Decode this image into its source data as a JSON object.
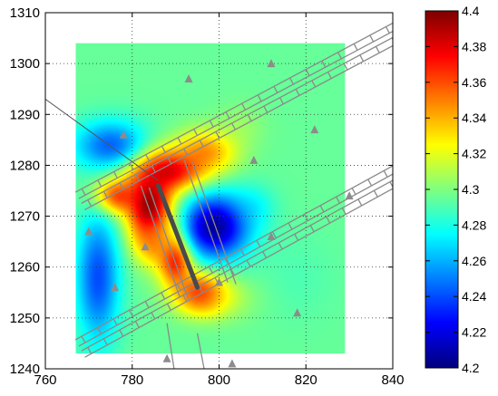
{
  "chart_data": {
    "type": "heatmap",
    "title": "",
    "xlabel": "",
    "ylabel": "",
    "xlim": [
      760,
      840
    ],
    "ylim": [
      1240,
      1310
    ],
    "x_ticks": [
      760,
      780,
      800,
      820,
      840
    ],
    "y_ticks": [
      1240,
      1250,
      1260,
      1270,
      1280,
      1290,
      1300,
      1310
    ],
    "grid": true,
    "grid_style": "dotted",
    "data_extent": {
      "x": [
        767,
        829
      ],
      "y": [
        1243,
        1304
      ]
    },
    "colormap": "jet",
    "colorbar": {
      "position": "right",
      "range": [
        4.2,
        4.4
      ],
      "ticks": [
        "4.2",
        "4.22",
        "4.24",
        "4.26",
        "4.28",
        "4.3",
        "4.32",
        "4.34",
        "4.36",
        "4.38",
        "4.4"
      ]
    },
    "features": [
      {
        "value": 4.4,
        "x": 784,
        "y": 1272,
        "sx": 3.8,
        "sy": 5.5,
        "a": 1.0
      },
      {
        "value": 4.4,
        "x": 788,
        "y": 1279,
        "sx": 6.5,
        "sy": 3.0,
        "a": 0.85
      },
      {
        "value": 4.4,
        "x": 776,
        "y": 1274,
        "sx": 3.5,
        "sy": 2.5,
        "a": 0.7
      },
      {
        "value": 4.4,
        "x": 790,
        "y": 1262,
        "sx": 2.8,
        "sy": 4.0,
        "a": 0.85
      },
      {
        "value": 4.4,
        "x": 796,
        "y": 1255,
        "sx": 4.0,
        "sy": 2.8,
        "a": 0.8
      },
      {
        "value": 4.38,
        "x": 797,
        "y": 1283,
        "sx": 5.0,
        "sy": 3.0,
        "a": 0.55
      },
      {
        "value": 4.36,
        "x": 785,
        "y": 1265,
        "sx": 3.0,
        "sy": 3.0,
        "a": 0.6
      },
      {
        "value": 4.33,
        "x": 800,
        "y": 1254,
        "sx": 6.0,
        "sy": 3.0,
        "a": 0.45
      },
      {
        "value": 4.32,
        "x": 805,
        "y": 1288,
        "sx": 4.0,
        "sy": 3.0,
        "a": 0.35
      },
      {
        "value": 4.2,
        "x": 799,
        "y": 1268,
        "sx": 5.5,
        "sy": 4.5,
        "a": -0.95
      },
      {
        "value": 4.21,
        "x": 775,
        "y": 1284,
        "sx": 6.0,
        "sy": 3.5,
        "a": -0.6
      },
      {
        "value": 4.21,
        "x": 772,
        "y": 1258,
        "sx": 3.5,
        "sy": 9.0,
        "a": -0.65
      },
      {
        "value": 4.25,
        "x": 808,
        "y": 1272,
        "sx": 3.5,
        "sy": 3.0,
        "a": -0.35
      },
      {
        "value": 4.27,
        "x": 818,
        "y": 1258,
        "sx": 6.0,
        "sy": 6.0,
        "a": -0.2
      }
    ],
    "stations": [
      {
        "x": 778,
        "y": 1286
      },
      {
        "x": 793,
        "y": 1297
      },
      {
        "x": 812,
        "y": 1300
      },
      {
        "x": 822,
        "y": 1287
      },
      {
        "x": 808,
        "y": 1281
      },
      {
        "x": 830,
        "y": 1274
      },
      {
        "x": 770,
        "y": 1267
      },
      {
        "x": 812,
        "y": 1266
      },
      {
        "x": 783,
        "y": 1264
      },
      {
        "x": 776,
        "y": 1256
      },
      {
        "x": 800,
        "y": 1257
      },
      {
        "x": 818,
        "y": 1251
      },
      {
        "x": 788,
        "y": 1242
      },
      {
        "x": 803,
        "y": 1241
      }
    ],
    "fault_line": [
      {
        "x": 786,
        "y": 1276
      },
      {
        "x": 795,
        "y": 1256
      }
    ],
    "thin_line": [
      {
        "x": 760,
        "y": 1293
      },
      {
        "x": 786,
        "y": 1277
      }
    ],
    "tunnels": [
      {
        "from": {
          "x": 768,
          "y": 1273
        },
        "to": {
          "x": 845,
          "y": 1308
        }
      },
      {
        "from": {
          "x": 768,
          "y": 1244
        },
        "to": {
          "x": 845,
          "y": 1280
        }
      }
    ]
  }
}
